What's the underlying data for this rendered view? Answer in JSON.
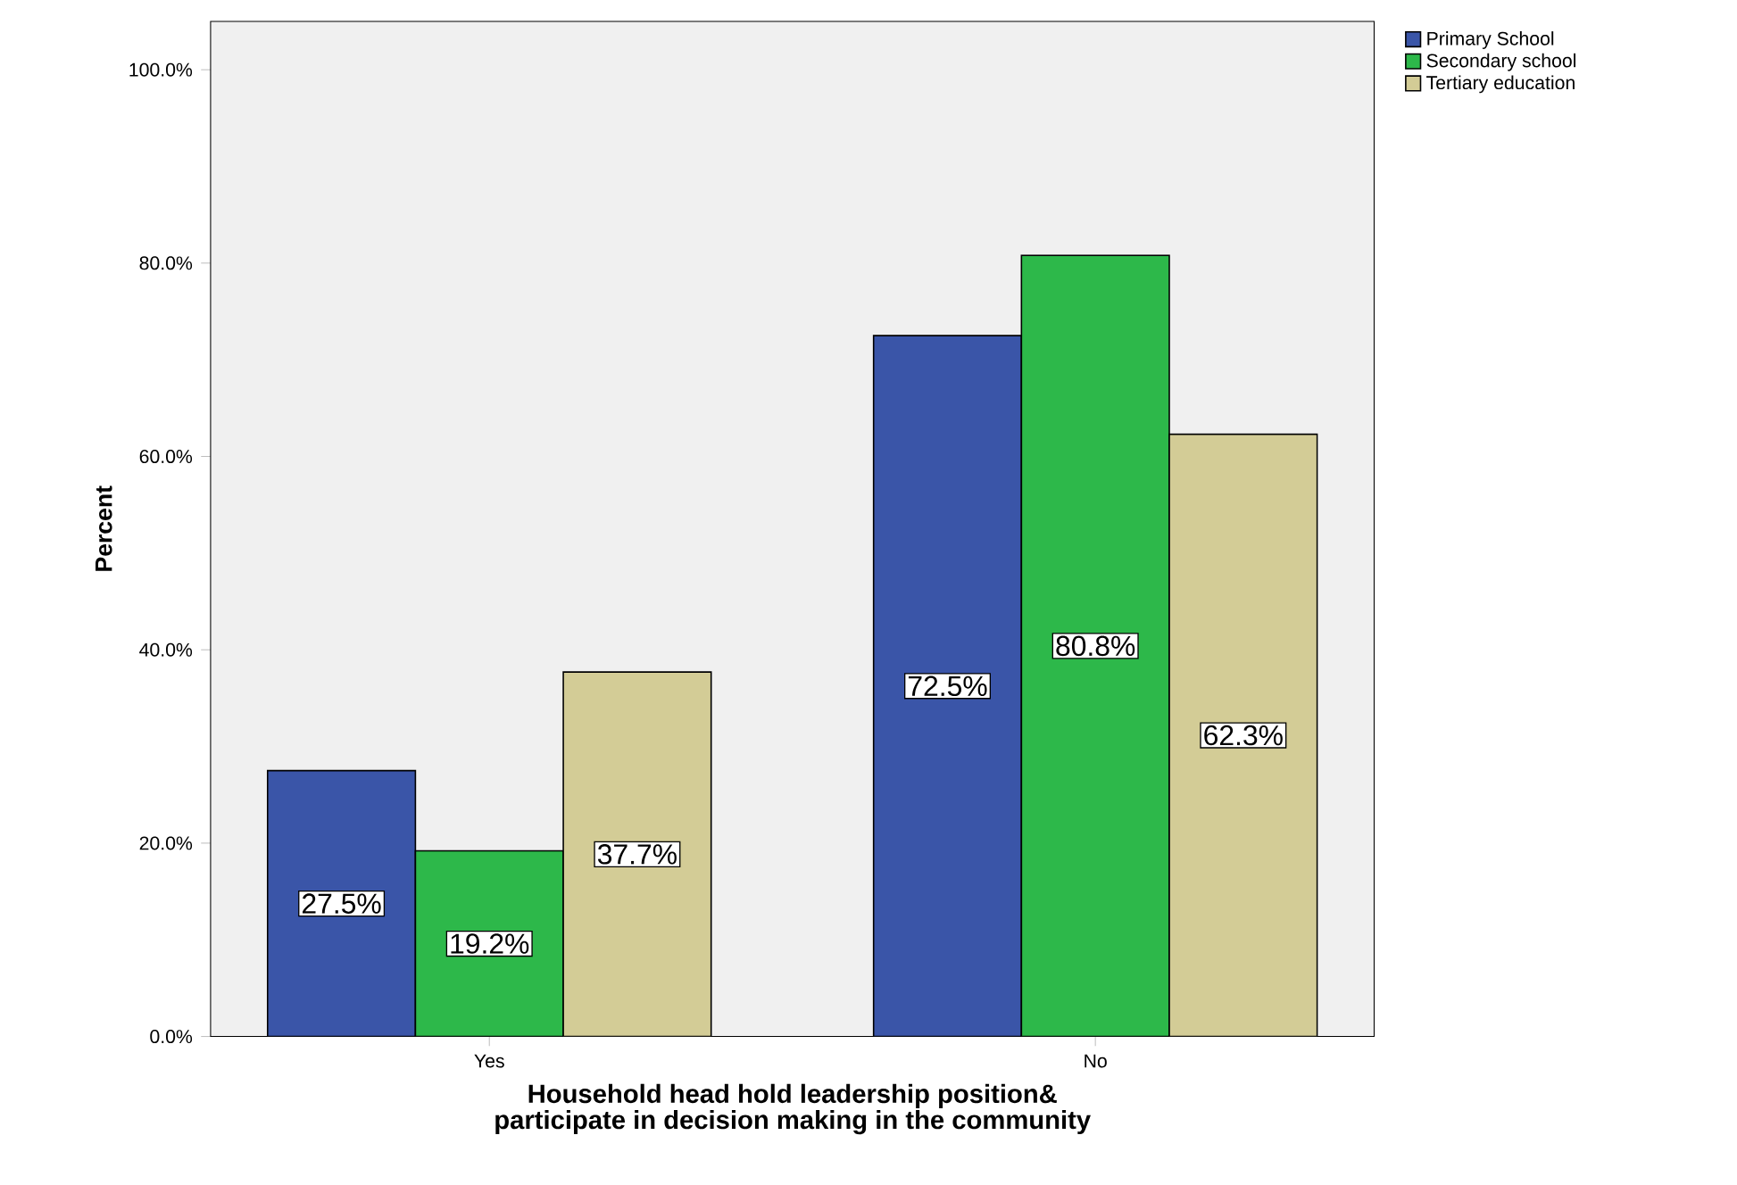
{
  "chart_data": {
    "type": "bar",
    "xlabel": "Household head hold leadership position&\nparticipate in decision making in the community",
    "ylabel": "Percent",
    "categories": [
      "Yes",
      "No"
    ],
    "series": [
      {
        "name": "Primary School",
        "color": "#3a55a8",
        "values": [
          27.5,
          72.5
        ],
        "value_labels": [
          "27.5%",
          "72.5%"
        ]
      },
      {
        "name": "Secondary school",
        "color": "#2db84a",
        "values": [
          19.2,
          80.8
        ],
        "value_labels": [
          "19.2%",
          "80.8%"
        ]
      },
      {
        "name": "Tertiary education",
        "color": "#d3cc96",
        "values": [
          37.7,
          62.3
        ],
        "value_labels": [
          "37.7%",
          "62.3%"
        ]
      }
    ],
    "ylim": [
      0,
      105
    ],
    "yticks": [
      {
        "value": 0,
        "label": "0.0%"
      },
      {
        "value": 20,
        "label": "20.0%"
      },
      {
        "value": 40,
        "label": "40.0%"
      },
      {
        "value": 60,
        "label": "60.0%"
      },
      {
        "value": 80,
        "label": "80.0%"
      },
      {
        "value": 100,
        "label": "100.0%"
      }
    ],
    "legend": "top right",
    "grid": false
  }
}
